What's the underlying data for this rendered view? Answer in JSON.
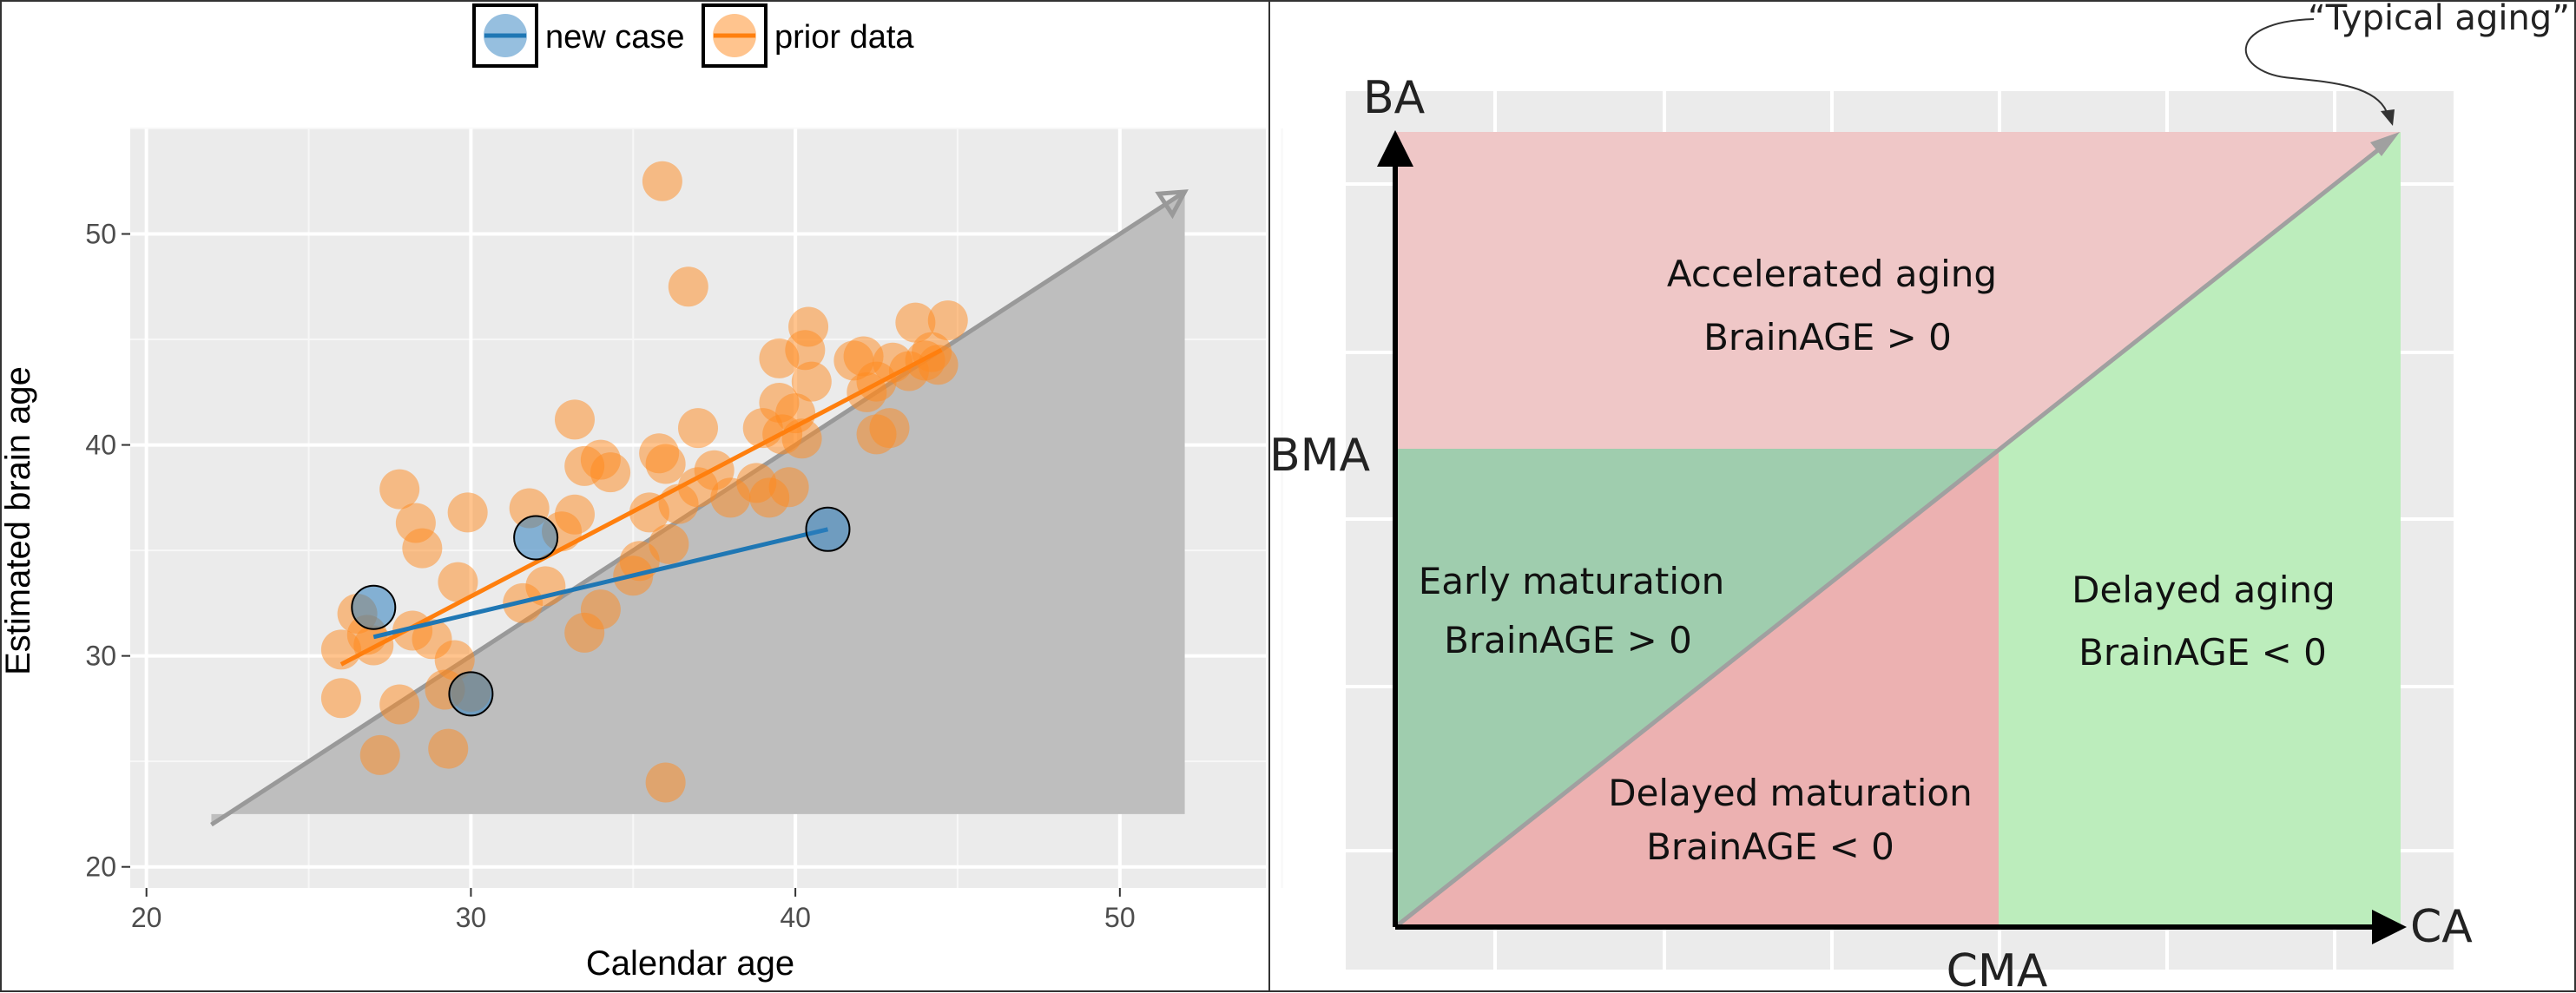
{
  "chart_data": [
    {
      "type": "scatter",
      "panel": "left",
      "xlabel": "Calendar age",
      "ylabel": "Estimated brain age",
      "xlim": [
        19.5,
        54.5
      ],
      "ylim": [
        19.0,
        55.0
      ],
      "xticks": [
        20,
        30,
        40,
        50
      ],
      "yticks": [
        20,
        30,
        40,
        50
      ],
      "grid": true,
      "legend_position": "top-center",
      "legend": [
        {
          "name": "new case",
          "color": "#2e7fc0"
        },
        {
          "name": "prior data",
          "color": "#ff8a1e"
        }
      ],
      "identity_arrow": {
        "from": [
          22,
          22
        ],
        "to": [
          52,
          52
        ]
      },
      "shaded_region": [
        [
          22,
          22
        ],
        [
          52,
          52
        ],
        [
          52,
          22.5
        ],
        [
          22,
          22.5
        ]
      ],
      "series": [
        {
          "name": "prior data",
          "color": "#ff8a1e",
          "points": [
            [
              26.0,
              28.0
            ],
            [
              26.0,
              30.3
            ],
            [
              26.8,
              31.0
            ],
            [
              26.5,
              32.0
            ],
            [
              27.0,
              30.5
            ],
            [
              27.2,
              25.3
            ],
            [
              27.8,
              27.7
            ],
            [
              27.8,
              37.9
            ],
            [
              28.2,
              31.2
            ],
            [
              28.3,
              36.3
            ],
            [
              28.5,
              35.1
            ],
            [
              28.8,
              30.8
            ],
            [
              29.2,
              28.4
            ],
            [
              29.3,
              25.6
            ],
            [
              29.5,
              29.8
            ],
            [
              29.6,
              33.5
            ],
            [
              29.9,
              36.8
            ],
            [
              30.0,
              28.3
            ],
            [
              31.6,
              32.5
            ],
            [
              31.8,
              37.0
            ],
            [
              32.3,
              33.3
            ],
            [
              32.8,
              35.9
            ],
            [
              33.2,
              36.7
            ],
            [
              33.2,
              41.2
            ],
            [
              33.5,
              31.1
            ],
            [
              33.5,
              39.0
            ],
            [
              34.0,
              32.2
            ],
            [
              34.0,
              39.3
            ],
            [
              34.3,
              38.7
            ],
            [
              35.0,
              33.8
            ],
            [
              35.2,
              34.5
            ],
            [
              35.5,
              36.8
            ],
            [
              35.8,
              39.6
            ],
            [
              35.9,
              52.5
            ],
            [
              36.0,
              39.1
            ],
            [
              36.0,
              24.0
            ],
            [
              36.1,
              35.3
            ],
            [
              36.4,
              37.2
            ],
            [
              36.7,
              47.5
            ],
            [
              37.0,
              38.0
            ],
            [
              37.0,
              40.8
            ],
            [
              37.5,
              38.8
            ],
            [
              38.0,
              37.5
            ],
            [
              38.8,
              38.2
            ],
            [
              39.0,
              40.8
            ],
            [
              39.2,
              37.5
            ],
            [
              39.5,
              42.0
            ],
            [
              39.5,
              44.1
            ],
            [
              39.6,
              40.5
            ],
            [
              39.8,
              38.0
            ],
            [
              40.0,
              41.5
            ],
            [
              40.2,
              40.3
            ],
            [
              40.3,
              44.5
            ],
            [
              40.4,
              45.6
            ],
            [
              40.5,
              43.0
            ],
            [
              41.8,
              44.0
            ],
            [
              42.1,
              44.2
            ],
            [
              42.2,
              42.5
            ],
            [
              42.5,
              40.5
            ],
            [
              42.5,
              43.0
            ],
            [
              42.9,
              40.8
            ],
            [
              43.0,
              43.9
            ],
            [
              43.5,
              43.5
            ],
            [
              43.7,
              45.8
            ],
            [
              44.0,
              44.0
            ],
            [
              44.2,
              44.4
            ],
            [
              44.4,
              43.8
            ],
            [
              44.7,
              45.9
            ]
          ],
          "fit_line": {
            "from": [
              26,
              29.6
            ],
            "to": [
              44.5,
              44.5
            ]
          }
        },
        {
          "name": "new case",
          "color": "#2e7fc0",
          "points": [
            [
              27,
              32.3
            ],
            [
              30,
              28.2
            ],
            [
              32,
              35.6
            ],
            [
              41,
              36.0
            ]
          ],
          "fit_line": {
            "from": [
              27,
              30.9
            ],
            "to": [
              41,
              36.0
            ]
          }
        }
      ]
    },
    {
      "type": "diagram",
      "panel": "right",
      "x_axis_label": "CA",
      "y_axis_label": "BA",
      "x_marker_label": "CMA",
      "y_marker_label": "BMA",
      "callout": "“Typical aging”",
      "regions": [
        {
          "title": "Accelerated aging",
          "condition": "BrainAGE > 0",
          "color": "#efc7c7"
        },
        {
          "title": "Early maturation",
          "condition": "BrainAGE > 0",
          "color": "#9fcdae"
        },
        {
          "title": "Delayed maturation",
          "condition": "BrainAGE < 0",
          "color": "#ecb1b1"
        },
        {
          "title": "Delayed aging",
          "condition": "BrainAGE < 0",
          "color": "#bcedbc"
        }
      ]
    }
  ]
}
